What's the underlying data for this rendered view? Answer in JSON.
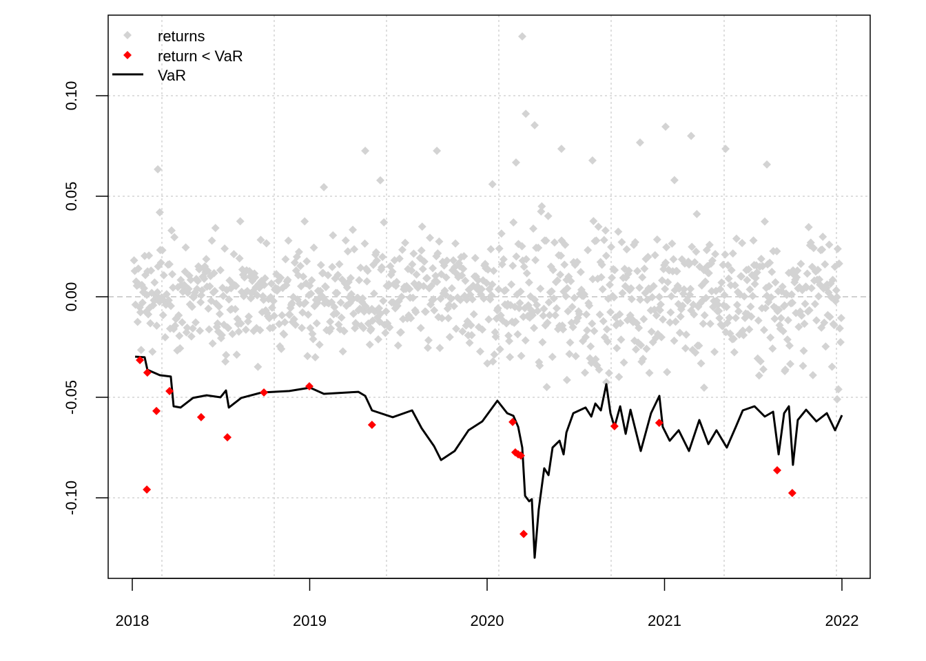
{
  "chart_data": {
    "type": "scatter",
    "title": "",
    "xlabel": "",
    "ylabel": "",
    "xlim": [
      2017.87,
      2022.16
    ],
    "ylim": [
      -0.1405,
      0.1395
    ],
    "x_ticks": [
      2018,
      2019,
      2020,
      2021,
      2022
    ],
    "x_tick_labels": [
      "2018",
      "2019",
      "2020",
      "2021",
      "2022"
    ],
    "y_ticks": [
      -0.1,
      -0.05,
      0.0,
      0.05,
      0.1
    ],
    "y_tick_labels": [
      "-0.10",
      "-0.05",
      "0.00",
      "0.05",
      "0.10"
    ],
    "grid": true,
    "grid_x": [
      2018.167,
      2018.8,
      2019.433,
      2020.066,
      2020.699,
      2021.336,
      2021.969
    ],
    "legend": {
      "placement": "top-left",
      "entries": [
        {
          "label": "returns",
          "color": "#d3d3d3",
          "symbol": "diamond"
        },
        {
          "label": "return < VaR",
          "color": "#ff0000",
          "symbol": "diamond"
        },
        {
          "label": "VaR",
          "color": "#000000",
          "symbol": "line"
        }
      ]
    },
    "series": [
      {
        "name": "returns",
        "color": "#d3d3d3",
        "note_values": "dense cloud of daily returns; notable points listed",
        "points": [
          [
            2020.198,
            0.1295
          ],
          [
            2020.218,
            0.091
          ],
          [
            2020.268,
            0.0853
          ],
          [
            2021.006,
            0.0846
          ],
          [
            2021.15,
            0.08
          ],
          [
            2019.313,
            0.0726
          ],
          [
            2019.717,
            0.0726
          ],
          [
            2020.419,
            0.0736
          ],
          [
            2021.344,
            0.0736
          ],
          [
            2018.144,
            0.0634
          ],
          [
            2020.163,
            0.0668
          ],
          [
            2020.594,
            0.0678
          ],
          [
            2021.577,
            0.0658
          ],
          [
            2020.862,
            0.0767
          ],
          [
            2019.08,
            0.0545
          ],
          [
            2019.398,
            0.0579
          ],
          [
            2020.45,
            -0.0414
          ],
          [
            2021.223,
            -0.0452
          ],
          [
            2021.678,
            -0.037
          ],
          [
            2021.973,
            -0.051
          ],
          [
            2020.672,
            -0.0425
          ],
          [
            2018.155,
            0.042
          ],
          [
            2021.056,
            0.058
          ],
          [
            2020.03,
            0.056
          ]
        ],
        "cloud": {
          "count": 1000,
          "sd": [
            0.017,
            0.018,
            0.022,
            0.02
          ]
        }
      },
      {
        "name": "return < VaR",
        "color": "#ff0000",
        "points": [
          [
            2018.043,
            -0.0315
          ],
          [
            2018.085,
            -0.0377
          ],
          [
            2018.136,
            -0.0568
          ],
          [
            2018.21,
            -0.0469
          ],
          [
            2018.082,
            -0.0959
          ],
          [
            2018.388,
            -0.0599
          ],
          [
            2018.536,
            -0.0699
          ],
          [
            2018.742,
            -0.0476
          ],
          [
            2018.998,
            -0.0445
          ],
          [
            2019.351,
            -0.0637
          ],
          [
            2020.144,
            -0.0623
          ],
          [
            2020.159,
            -0.0774
          ],
          [
            2020.175,
            -0.0784
          ],
          [
            2020.19,
            -0.079
          ],
          [
            2020.206,
            -0.118
          ],
          [
            2020.718,
            -0.0644
          ],
          [
            2020.97,
            -0.0627
          ],
          [
            2021.635,
            -0.0863
          ],
          [
            2021.72,
            -0.0976
          ]
        ]
      },
      {
        "name": "VaR",
        "color": "#000000",
        "type": "line",
        "points": [
          [
            2018.016,
            -0.0298
          ],
          [
            2018.07,
            -0.0301
          ],
          [
            2018.085,
            -0.0363
          ],
          [
            2018.155,
            -0.039
          ],
          [
            2018.217,
            -0.0397
          ],
          [
            2018.233,
            -0.0545
          ],
          [
            2018.272,
            -0.0551
          ],
          [
            2018.342,
            -0.0503
          ],
          [
            2018.419,
            -0.049
          ],
          [
            2018.497,
            -0.05
          ],
          [
            2018.528,
            -0.0466
          ],
          [
            2018.544,
            -0.0551
          ],
          [
            2018.614,
            -0.0503
          ],
          [
            2018.73,
            -0.0476
          ],
          [
            2018.885,
            -0.0469
          ],
          [
            2019.002,
            -0.0452
          ],
          [
            2019.08,
            -0.0483
          ],
          [
            2019.274,
            -0.0473
          ],
          [
            2019.313,
            -0.0493
          ],
          [
            2019.351,
            -0.0565
          ],
          [
            2019.468,
            -0.0599
          ],
          [
            2019.577,
            -0.0565
          ],
          [
            2019.631,
            -0.0654
          ],
          [
            2019.701,
            -0.0743
          ],
          [
            2019.74,
            -0.0812
          ],
          [
            2019.817,
            -0.0767
          ],
          [
            2019.895,
            -0.0664
          ],
          [
            2019.973,
            -0.062
          ],
          [
            2020.058,
            -0.0517
          ],
          [
            2020.113,
            -0.0579
          ],
          [
            2020.148,
            -0.0592
          ],
          [
            2020.175,
            -0.0647
          ],
          [
            2020.198,
            -0.075
          ],
          [
            2020.214,
            -0.099
          ],
          [
            2020.237,
            -0.1017
          ],
          [
            2020.252,
            -0.1007
          ],
          [
            2020.268,
            -0.1298
          ],
          [
            2020.291,
            -0.1058
          ],
          [
            2020.322,
            -0.0853
          ],
          [
            2020.346,
            -0.0887
          ],
          [
            2020.369,
            -0.075
          ],
          [
            2020.408,
            -0.0716
          ],
          [
            2020.431,
            -0.0784
          ],
          [
            2020.447,
            -0.0675
          ],
          [
            2020.486,
            -0.0579
          ],
          [
            2020.555,
            -0.0551
          ],
          [
            2020.587,
            -0.0596
          ],
          [
            2020.61,
            -0.0531
          ],
          [
            2020.641,
            -0.0565
          ],
          [
            2020.672,
            -0.0435
          ],
          [
            2020.695,
            -0.0579
          ],
          [
            2020.718,
            -0.0647
          ],
          [
            2020.75,
            -0.0545
          ],
          [
            2020.781,
            -0.0682
          ],
          [
            2020.808,
            -0.0562
          ],
          [
            2020.866,
            -0.0767
          ],
          [
            2020.924,
            -0.0579
          ],
          [
            2020.971,
            -0.0493
          ],
          [
            2020.99,
            -0.0647
          ],
          [
            2021.029,
            -0.0716
          ],
          [
            2021.08,
            -0.0664
          ],
          [
            2021.138,
            -0.0767
          ],
          [
            2021.196,
            -0.0613
          ],
          [
            2021.247,
            -0.0733
          ],
          [
            2021.293,
            -0.0664
          ],
          [
            2021.351,
            -0.075
          ],
          [
            2021.402,
            -0.0647
          ],
          [
            2021.441,
            -0.0565
          ],
          [
            2021.507,
            -0.0545
          ],
          [
            2021.565,
            -0.0596
          ],
          [
            2021.612,
            -0.0572
          ],
          [
            2021.643,
            -0.0784
          ],
          [
            2021.674,
            -0.0579
          ],
          [
            2021.701,
            -0.0545
          ],
          [
            2021.724,
            -0.0836
          ],
          [
            2021.751,
            -0.0613
          ],
          [
            2021.798,
            -0.0562
          ],
          [
            2021.856,
            -0.062
          ],
          [
            2021.915,
            -0.0579
          ],
          [
            2021.961,
            -0.0664
          ],
          [
            2022.0,
            -0.0589
          ]
        ]
      }
    ]
  }
}
